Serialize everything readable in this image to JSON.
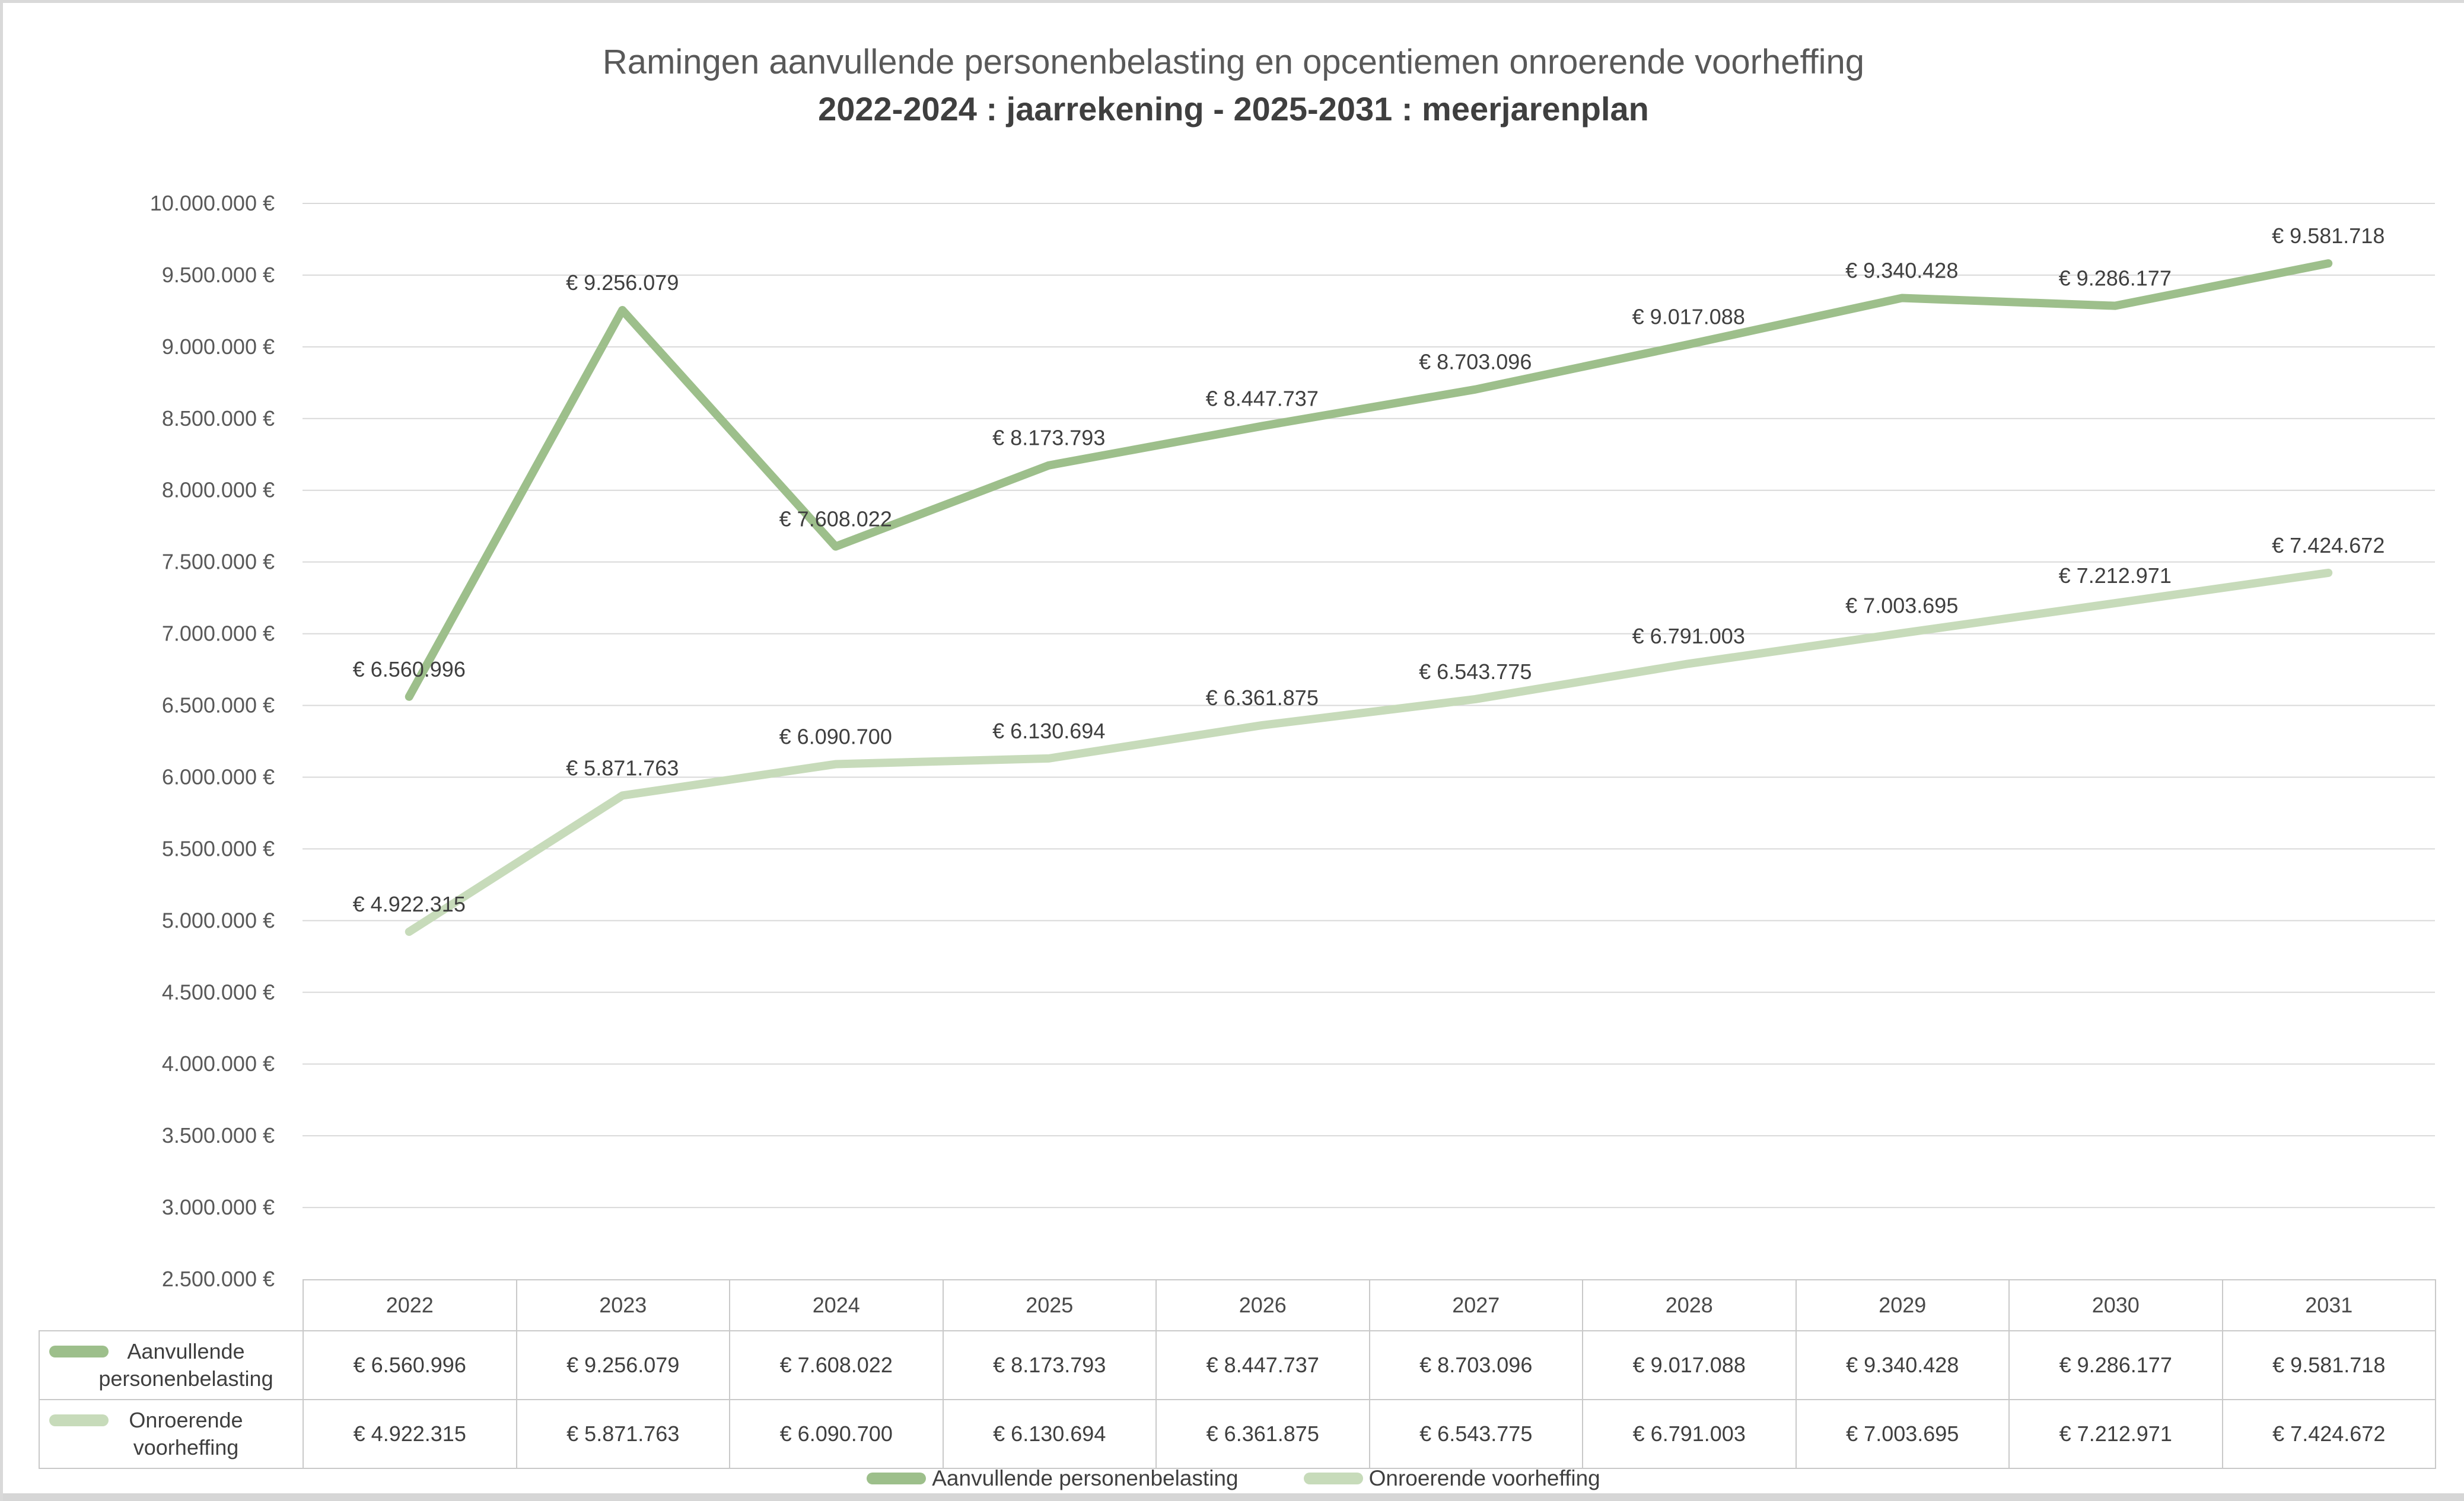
{
  "title": {
    "line1": "Ramingen aanvullende personenbelasting en opcentiemen onroerende voorheffing",
    "line2": "2022-2024 : jaarrekening - 2025-2031 : meerjarenplan"
  },
  "chart_data": {
    "type": "line",
    "categories": [
      "2022",
      "2023",
      "2024",
      "2025",
      "2026",
      "2027",
      "2028",
      "2029",
      "2030",
      "2031"
    ],
    "series": [
      {
        "name": "Aanvullende personenbelasting",
        "color": "#9dbf8b",
        "values": [
          6560996,
          9256079,
          7608022,
          8173793,
          8447737,
          8703096,
          9017088,
          9340428,
          9286177,
          9581718
        ],
        "labels": [
          "€ 6.560.996",
          "€ 9.256.079",
          "€ 7.608.022",
          "€ 8.173.793",
          "€ 8.447.737",
          "€ 8.703.096",
          "€ 9.017.088",
          "€ 9.340.428",
          "€ 9.286.177",
          "€ 9.581.718"
        ]
      },
      {
        "name": "Onroerende voorheffing",
        "color": "#c7dbba",
        "values": [
          4922315,
          5871763,
          6090700,
          6130694,
          6361875,
          6543775,
          6791003,
          7003695,
          7212971,
          7424672
        ],
        "labels": [
          "€ 4.922.315",
          "€ 5.871.763",
          "€ 6.090.700",
          "€ 6.130.694",
          "€ 6.361.875",
          "€ 6.543.775",
          "€ 6.791.003",
          "€ 7.003.695",
          "€ 7.212.971",
          "€ 7.424.672"
        ]
      }
    ],
    "y_axis": {
      "min": 2500000,
      "max": 10000000,
      "step": 500000,
      "tick_labels": [
        "10.000.000 €",
        "9.500.000 €",
        "9.000.000 €",
        "8.500.000 €",
        "8.000.000 €",
        "7.500.000 €",
        "7.000.000 €",
        "6.500.000 €",
        "6.000.000 €",
        "5.500.000 €",
        "5.000.000 €",
        "4.500.000 €",
        "4.000.000 €",
        "3.500.000 €",
        "3.000.000 €",
        "2.500.000 €"
      ]
    },
    "grid": "horizontal",
    "legend_position": "bottom"
  },
  "table": {
    "columns": [
      "2022",
      "2023",
      "2024",
      "2025",
      "2026",
      "2027",
      "2028",
      "2029",
      "2030",
      "2031"
    ],
    "rows": [
      {
        "header": "Aanvullende personenbelasting",
        "swatch_color": "#9dbf8b",
        "cells": [
          "€ 6.560.996",
          "€ 9.256.079",
          "€ 7.608.022",
          "€ 8.173.793",
          "€ 8.447.737",
          "€ 8.703.096",
          "€ 9.017.088",
          "€ 9.340.428",
          "€ 9.286.177",
          "€ 9.581.718"
        ]
      },
      {
        "header": "Onroerende voorheffing",
        "swatch_color": "#c7dbba",
        "cells": [
          "€ 4.922.315",
          "€ 5.871.763",
          "€ 6.090.700",
          "€ 6.130.694",
          "€ 6.361.875",
          "€ 6.543.775",
          "€ 6.791.003",
          "€ 7.003.695",
          "€ 7.212.971",
          "€ 7.424.672"
        ]
      }
    ]
  },
  "legend": {
    "items": [
      {
        "label": "Aanvullende personenbelasting",
        "color": "#9dbf8b"
      },
      {
        "label": "Onroerende voorheffing",
        "color": "#c7dbba"
      }
    ]
  },
  "colors": {
    "series1": "#9dbf8b",
    "series2": "#c7dbba",
    "gridline": "#d9d9d9",
    "table_border": "#c9c9c9",
    "axis_text": "#595959",
    "label_text": "#3f3f3f",
    "frame": "#d9d9d9",
    "bottom_strip": "#d6d6d6"
  }
}
